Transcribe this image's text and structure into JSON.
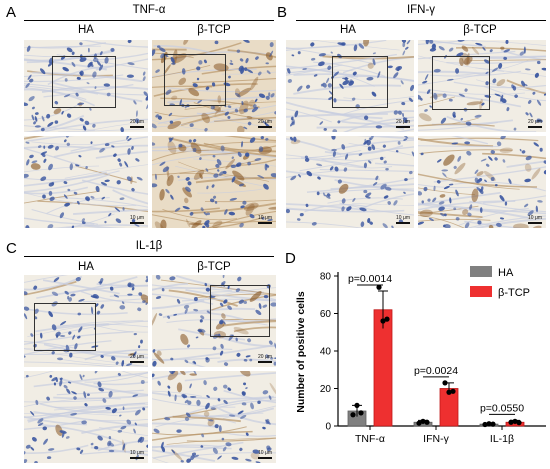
{
  "panels": {
    "A": {
      "letter": "A",
      "title": "TNF-α",
      "cols": [
        "HA",
        "β-TCP"
      ]
    },
    "B": {
      "letter": "B",
      "title": "IFN-γ",
      "cols": [
        "HA",
        "β-TCP"
      ]
    },
    "C": {
      "letter": "C",
      "title": "IL-1β",
      "cols": [
        "HA",
        "β-TCP"
      ]
    },
    "D": {
      "letter": "D"
    }
  },
  "scale_labels": {
    "top": "20 μm",
    "bottom": "10 μm"
  },
  "colors": {
    "HA": "#808080",
    "beta_TCP": "#ee3030",
    "stain_blue": "#3a56a0",
    "stain_brown": "#8a5a28"
  },
  "chart_data": {
    "type": "bar",
    "categories": [
      "TNF-α",
      "IFN-γ",
      "IL-1β"
    ],
    "series": [
      {
        "name": "HA",
        "values": [
          8,
          2,
          1
        ],
        "sd": [
          3,
          1,
          0.5
        ],
        "points": [
          [
            6,
            11,
            7
          ],
          [
            1.5,
            2.5,
            2
          ],
          [
            0.8,
            1.2,
            1
          ]
        ]
      },
      {
        "name": "β-TCP",
        "values": [
          62,
          20,
          2
        ],
        "sd": [
          10,
          3,
          1
        ],
        "points": [
          [
            74,
            56,
            57
          ],
          [
            23,
            18,
            18.5
          ],
          [
            2,
            2.5,
            1.8
          ]
        ]
      }
    ],
    "pvalues": [
      "p=0.0014",
      "p=0.0024",
      "p=0.0550"
    ],
    "ylabel": "Number of positive cells",
    "ylim": [
      0,
      80
    ],
    "yticks": [
      0,
      20,
      40,
      60,
      80
    ],
    "legend": "top-right",
    "grid": false
  }
}
